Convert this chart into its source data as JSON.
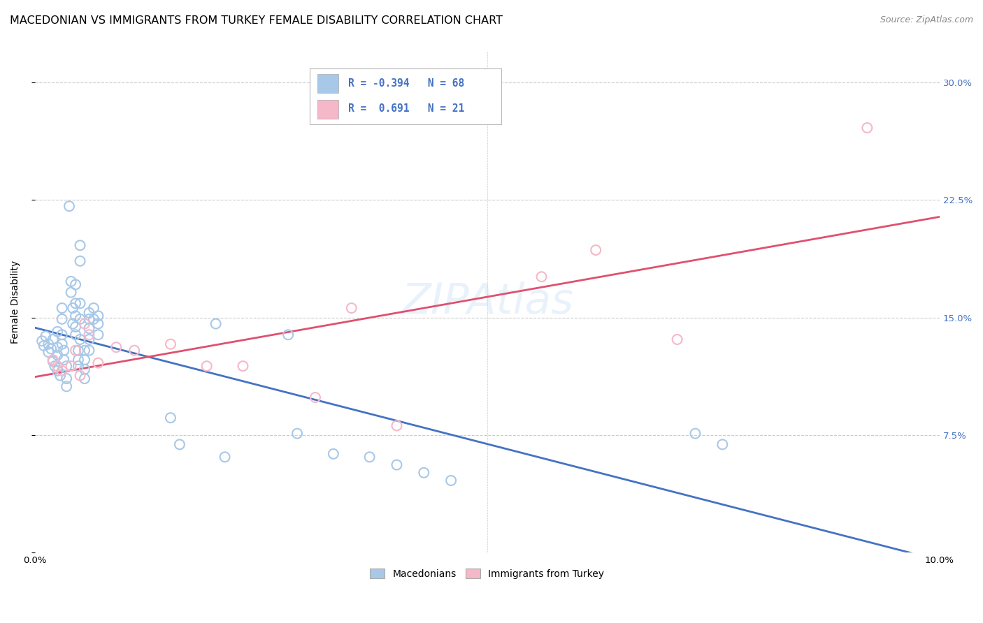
{
  "title": "MACEDONIAN VS IMMIGRANTS FROM TURKEY FEMALE DISABILITY CORRELATION CHART",
  "source": "Source: ZipAtlas.com",
  "ylabel": "Female Disability",
  "x_min": 0.0,
  "x_max": 0.1,
  "y_min": 0.0,
  "y_max": 0.32,
  "x_ticks": [
    0.0,
    0.02,
    0.04,
    0.06,
    0.08,
    0.1
  ],
  "x_tick_labels": [
    "0.0%",
    "",
    "",
    "",
    "",
    "10.0%"
  ],
  "y_ticks": [
    0.0,
    0.075,
    0.15,
    0.225,
    0.3
  ],
  "y_tick_labels_right": [
    "",
    "7.5%",
    "15.0%",
    "22.5%",
    "30.0%"
  ],
  "blue_R": "-0.394",
  "blue_N": "68",
  "pink_R": "0.691",
  "pink_N": "21",
  "blue_color": "#a8c8e8",
  "pink_color": "#f5b8c8",
  "blue_line_color": "#4472c4",
  "pink_line_color": "#e05070",
  "macedonians_label": "Macedonians",
  "turkey_label": "Immigrants from Turkey",
  "blue_points": [
    [
      0.0008,
      0.135
    ],
    [
      0.001,
      0.132
    ],
    [
      0.0012,
      0.138
    ],
    [
      0.0015,
      0.128
    ],
    [
      0.0015,
      0.133
    ],
    [
      0.0018,
      0.13
    ],
    [
      0.002,
      0.136
    ],
    [
      0.002,
      0.122
    ],
    [
      0.0022,
      0.119
    ],
    [
      0.0025,
      0.141
    ],
    [
      0.0025,
      0.131
    ],
    [
      0.0025,
      0.126
    ],
    [
      0.0025,
      0.116
    ],
    [
      0.0028,
      0.113
    ],
    [
      0.003,
      0.156
    ],
    [
      0.003,
      0.149
    ],
    [
      0.003,
      0.139
    ],
    [
      0.003,
      0.133
    ],
    [
      0.0032,
      0.129
    ],
    [
      0.0032,
      0.123
    ],
    [
      0.0035,
      0.119
    ],
    [
      0.0035,
      0.111
    ],
    [
      0.0035,
      0.106
    ],
    [
      0.0038,
      0.221
    ],
    [
      0.004,
      0.173
    ],
    [
      0.004,
      0.166
    ],
    [
      0.0042,
      0.156
    ],
    [
      0.0042,
      0.146
    ],
    [
      0.0045,
      0.171
    ],
    [
      0.0045,
      0.159
    ],
    [
      0.0045,
      0.151
    ],
    [
      0.0045,
      0.144
    ],
    [
      0.0045,
      0.139
    ],
    [
      0.0048,
      0.129
    ],
    [
      0.0048,
      0.123
    ],
    [
      0.0048,
      0.119
    ],
    [
      0.005,
      0.196
    ],
    [
      0.005,
      0.186
    ],
    [
      0.005,
      0.159
    ],
    [
      0.005,
      0.149
    ],
    [
      0.005,
      0.136
    ],
    [
      0.0055,
      0.129
    ],
    [
      0.0055,
      0.123
    ],
    [
      0.0055,
      0.117
    ],
    [
      0.0055,
      0.111
    ],
    [
      0.006,
      0.153
    ],
    [
      0.006,
      0.149
    ],
    [
      0.006,
      0.143
    ],
    [
      0.006,
      0.136
    ],
    [
      0.006,
      0.129
    ],
    [
      0.0065,
      0.156
    ],
    [
      0.0065,
      0.149
    ],
    [
      0.007,
      0.151
    ],
    [
      0.007,
      0.146
    ],
    [
      0.007,
      0.139
    ],
    [
      0.015,
      0.086
    ],
    [
      0.016,
      0.069
    ],
    [
      0.02,
      0.146
    ],
    [
      0.021,
      0.061
    ],
    [
      0.028,
      0.139
    ],
    [
      0.029,
      0.076
    ],
    [
      0.033,
      0.063
    ],
    [
      0.037,
      0.061
    ],
    [
      0.04,
      0.056
    ],
    [
      0.043,
      0.051
    ],
    [
      0.046,
      0.046
    ],
    [
      0.073,
      0.076
    ],
    [
      0.076,
      0.069
    ]
  ],
  "pink_points": [
    [
      0.002,
      0.123
    ],
    [
      0.0025,
      0.119
    ],
    [
      0.003,
      0.116
    ],
    [
      0.004,
      0.119
    ],
    [
      0.0045,
      0.129
    ],
    [
      0.005,
      0.113
    ],
    [
      0.0055,
      0.146
    ],
    [
      0.006,
      0.139
    ],
    [
      0.007,
      0.121
    ],
    [
      0.009,
      0.131
    ],
    [
      0.011,
      0.129
    ],
    [
      0.015,
      0.133
    ],
    [
      0.019,
      0.119
    ],
    [
      0.023,
      0.119
    ],
    [
      0.031,
      0.099
    ],
    [
      0.035,
      0.156
    ],
    [
      0.04,
      0.081
    ],
    [
      0.056,
      0.176
    ],
    [
      0.062,
      0.193
    ],
    [
      0.071,
      0.136
    ],
    [
      0.092,
      0.271
    ]
  ],
  "background_color": "#ffffff",
  "grid_color": "#cccccc",
  "title_fontsize": 11.5,
  "axis_label_fontsize": 10,
  "tick_fontsize": 9.5,
  "source_fontsize": 9
}
